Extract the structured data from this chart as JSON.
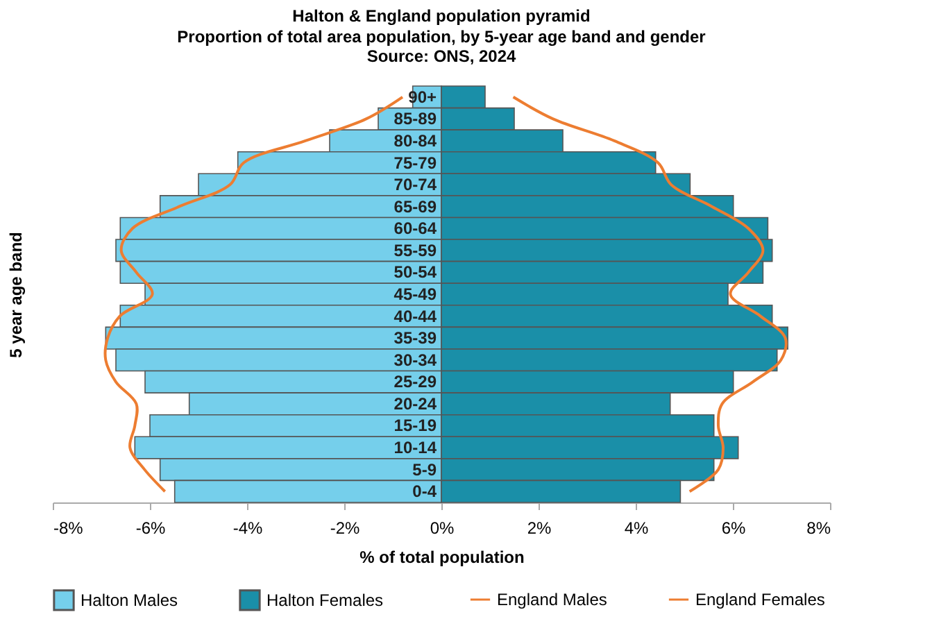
{
  "chart_data": {
    "type": "bar",
    "orientation": "horizontal",
    "stacked": true,
    "title": "Halton & England population pyramid",
    "subtitle": "Proportion of total area population, by 5-year age band and gender",
    "annotations": [
      "Source: ONS, 2024"
    ],
    "xlabel": "% of total population",
    "ylabel": "5 year age band",
    "categories": [
      "90+",
      "85-89",
      "80-84",
      "75-79",
      "70-74",
      "65-69",
      "60-64",
      "55-59",
      "50-54",
      "45-49",
      "40-44",
      "35-39",
      "30-34",
      "25-29",
      "20-24",
      "15-19",
      "10-14",
      "5-9",
      "0-4"
    ],
    "series": [
      {
        "name": "Halton Males",
        "color": "#75cfeb",
        "values": [
          -0.59,
          -1.3,
          -2.3,
          -4.19,
          -5.0,
          -5.79,
          -6.61,
          -6.7,
          -6.61,
          -6.1,
          -6.61,
          -6.91,
          -6.7,
          -6.1,
          -5.19,
          -6.0,
          -6.31,
          -5.79,
          -5.49
        ]
      },
      {
        "name": "Halton Females",
        "color": "#1a8fa8",
        "values": [
          0.9,
          1.5,
          2.5,
          4.41,
          5.12,
          6.01,
          6.72,
          6.81,
          6.62,
          5.9,
          6.81,
          7.13,
          6.91,
          6.01,
          4.71,
          5.61,
          6.11,
          5.61,
          4.92
        ]
      },
      {
        "name": "England Males",
        "type": "line",
        "color": "#ed7d31",
        "values": [
          -0.8,
          -1.55,
          -2.8,
          -4.07,
          -4.35,
          -5.4,
          -6.36,
          -6.59,
          -6.28,
          -5.95,
          -6.62,
          -6.87,
          -6.91,
          -6.7,
          -6.28,
          -6.31,
          -6.41,
          -6.11,
          -5.69
        ]
      },
      {
        "name": "England Females",
        "type": "line",
        "color": "#ed7d31",
        "values": [
          1.48,
          2.3,
          3.56,
          4.46,
          4.73,
          5.57,
          6.32,
          6.62,
          6.32,
          5.95,
          6.57,
          7.08,
          6.99,
          6.41,
          5.78,
          5.7,
          5.8,
          5.7,
          5.11
        ]
      }
    ],
    "xlim": [
      -8,
      8
    ],
    "xticks": [
      {
        "value": -8,
        "label": "-8%"
      },
      {
        "value": -6,
        "label": "-6%"
      },
      {
        "value": -4,
        "label": "-4%"
      },
      {
        "value": -2,
        "label": "-2%"
      },
      {
        "value": 0,
        "label": "0%"
      },
      {
        "value": 2,
        "label": "2%"
      },
      {
        "value": 4,
        "label": "4%"
      },
      {
        "value": 6,
        "label": "6%"
      },
      {
        "value": 8,
        "label": "8%"
      }
    ],
    "legend": "bottom",
    "grid": false,
    "marker": "none",
    "line_style": "solid"
  }
}
